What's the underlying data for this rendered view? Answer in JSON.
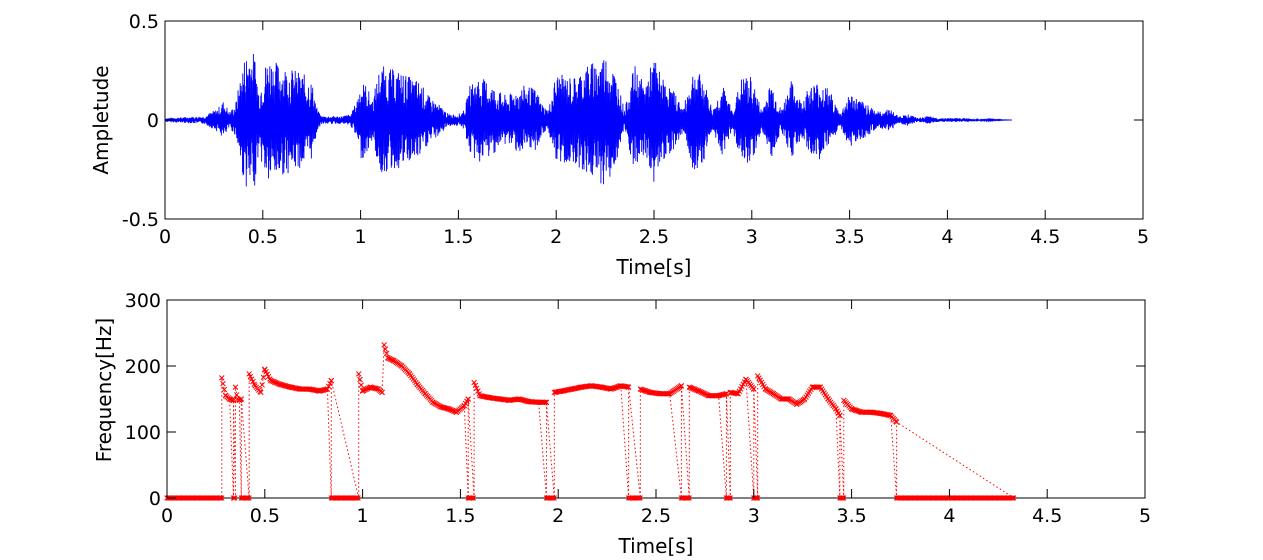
{
  "chart_data": [
    {
      "type": "line",
      "xlabel": "Time[s]",
      "ylabel": "Ampletude",
      "xlim": [
        0,
        5
      ],
      "ylim": [
        -0.5,
        0.5
      ],
      "x_ticks": [
        "0",
        "0.5",
        "1",
        "1.5",
        "2",
        "2.5",
        "3",
        "3.5",
        "4",
        "4.5",
        "5"
      ],
      "y_ticks": [
        "-0.5",
        "0",
        "0.5"
      ],
      "grid": false,
      "series_color": "#0000ff",
      "signal_end_s": 4.33,
      "envelope": {
        "t": [
          0.0,
          0.2,
          0.27,
          0.3,
          0.33,
          0.36,
          0.4,
          0.43,
          0.46,
          0.48,
          0.5,
          0.53,
          0.56,
          0.6,
          0.65,
          0.7,
          0.75,
          0.78,
          0.8,
          0.84,
          0.9,
          0.95,
          0.98,
          1.0,
          1.03,
          1.06,
          1.1,
          1.15,
          1.2,
          1.25,
          1.3,
          1.35,
          1.4,
          1.45,
          1.5,
          1.53,
          1.56,
          1.6,
          1.65,
          1.7,
          1.75,
          1.8,
          1.85,
          1.9,
          1.93,
          1.96,
          2.0,
          2.05,
          2.1,
          2.15,
          2.2,
          2.25,
          2.3,
          2.35,
          2.4,
          2.45,
          2.5,
          2.55,
          2.6,
          2.65,
          2.7,
          2.75,
          2.8,
          2.85,
          2.9,
          2.95,
          3.0,
          3.05,
          3.1,
          3.15,
          3.2,
          3.25,
          3.3,
          3.35,
          3.4,
          3.45,
          3.5,
          3.55,
          3.6,
          3.65,
          3.7,
          3.75,
          3.8,
          3.85,
          3.9,
          3.95,
          4.0,
          4.05,
          4.1,
          4.15,
          4.33
        ],
        "amp": [
          0.01,
          0.02,
          0.06,
          0.1,
          0.04,
          0.08,
          0.3,
          0.38,
          0.33,
          0.15,
          0.25,
          0.33,
          0.3,
          0.28,
          0.26,
          0.24,
          0.2,
          0.05,
          0.02,
          0.02,
          0.02,
          0.03,
          0.1,
          0.2,
          0.18,
          0.1,
          0.28,
          0.26,
          0.25,
          0.22,
          0.2,
          0.12,
          0.08,
          0.03,
          0.03,
          0.05,
          0.18,
          0.22,
          0.2,
          0.15,
          0.12,
          0.16,
          0.18,
          0.15,
          0.08,
          0.05,
          0.24,
          0.22,
          0.22,
          0.28,
          0.3,
          0.34,
          0.25,
          0.05,
          0.28,
          0.18,
          0.32,
          0.2,
          0.15,
          0.06,
          0.26,
          0.22,
          0.05,
          0.18,
          0.05,
          0.22,
          0.22,
          0.05,
          0.2,
          0.05,
          0.2,
          0.1,
          0.18,
          0.2,
          0.15,
          0.03,
          0.14,
          0.1,
          0.08,
          0.04,
          0.06,
          0.02,
          0.03,
          0.01,
          0.02,
          0.01,
          0.01,
          0.01,
          0.01,
          0.005,
          0.0
        ]
      }
    },
    {
      "type": "scatter",
      "xlabel": "Time[s]",
      "ylabel": "Frequency[Hz]",
      "xlim": [
        0,
        5
      ],
      "ylim": [
        0,
        300
      ],
      "x_ticks": [
        "0",
        "0.5",
        "1",
        "1.5",
        "2",
        "2.5",
        "3",
        "3.5",
        "4",
        "4.5",
        "5"
      ],
      "y_ticks": [
        "0",
        "100",
        "200",
        "300"
      ],
      "grid": false,
      "series_color": "#ff0000",
      "marker": "x",
      "unvoiced_intervals": [
        [
          0.0,
          0.28
        ],
        [
          0.34,
          0.35
        ],
        [
          0.38,
          0.42
        ],
        [
          0.84,
          0.98
        ],
        [
          1.54,
          1.57
        ],
        [
          1.94,
          1.98
        ],
        [
          2.36,
          2.42
        ],
        [
          2.63,
          2.67
        ],
        [
          2.86,
          2.88
        ],
        [
          3.0,
          3.02
        ],
        [
          3.44,
          3.46
        ],
        [
          3.73,
          4.33
        ]
      ],
      "voiced_segments": [
        {
          "t": [
            0.28,
            0.3,
            0.32,
            0.34
          ],
          "f": [
            182,
            155,
            150,
            148
          ]
        },
        {
          "t": [
            0.35,
            0.36,
            0.37,
            0.38
          ],
          "f": [
            168,
            150,
            148,
            150
          ]
        },
        {
          "t": [
            0.42,
            0.45,
            0.48,
            0.5,
            0.53,
            0.58,
            0.63,
            0.68,
            0.73,
            0.78,
            0.82,
            0.84
          ],
          "f": [
            188,
            170,
            160,
            195,
            178,
            172,
            168,
            165,
            165,
            162,
            165,
            178
          ]
        },
        {
          "t": [
            0.98,
            1.0,
            1.04,
            1.08,
            1.1
          ],
          "f": [
            188,
            162,
            168,
            165,
            160
          ]
        },
        {
          "t": [
            1.11,
            1.13,
            1.16,
            1.2,
            1.24,
            1.28,
            1.32,
            1.36,
            1.4,
            1.44,
            1.48,
            1.52,
            1.54
          ],
          "f": [
            232,
            212,
            208,
            200,
            188,
            172,
            158,
            145,
            138,
            135,
            130,
            140,
            150
          ]
        },
        {
          "t": [
            1.57,
            1.6,
            1.65,
            1.7,
            1.75,
            1.8,
            1.85,
            1.9,
            1.94
          ],
          "f": [
            175,
            155,
            152,
            150,
            148,
            150,
            146,
            145,
            145
          ]
        },
        {
          "t": [
            1.98,
            2.02,
            2.07,
            2.12,
            2.17,
            2.22,
            2.27,
            2.32,
            2.36
          ],
          "f": [
            160,
            162,
            165,
            168,
            170,
            168,
            165,
            170,
            168
          ]
        },
        {
          "t": [
            2.42,
            2.47,
            2.52,
            2.57,
            2.63
          ],
          "f": [
            165,
            160,
            158,
            158,
            170
          ]
        },
        {
          "t": [
            2.67,
            2.72,
            2.77,
            2.82,
            2.86
          ],
          "f": [
            168,
            162,
            155,
            155,
            158
          ]
        },
        {
          "t": [
            2.88,
            2.92,
            2.96,
            3.0
          ],
          "f": [
            160,
            158,
            180,
            165
          ]
        },
        {
          "t": [
            3.02,
            3.06,
            3.1,
            3.14,
            3.18,
            3.22,
            3.26,
            3.3,
            3.34,
            3.38,
            3.42,
            3.44
          ],
          "f": [
            185,
            165,
            158,
            150,
            150,
            142,
            150,
            168,
            168,
            150,
            135,
            125
          ]
        },
        {
          "t": [
            3.46,
            3.5,
            3.55,
            3.6,
            3.65,
            3.7,
            3.73
          ],
          "f": [
            148,
            135,
            130,
            130,
            128,
            125,
            115
          ]
        }
      ]
    }
  ]
}
